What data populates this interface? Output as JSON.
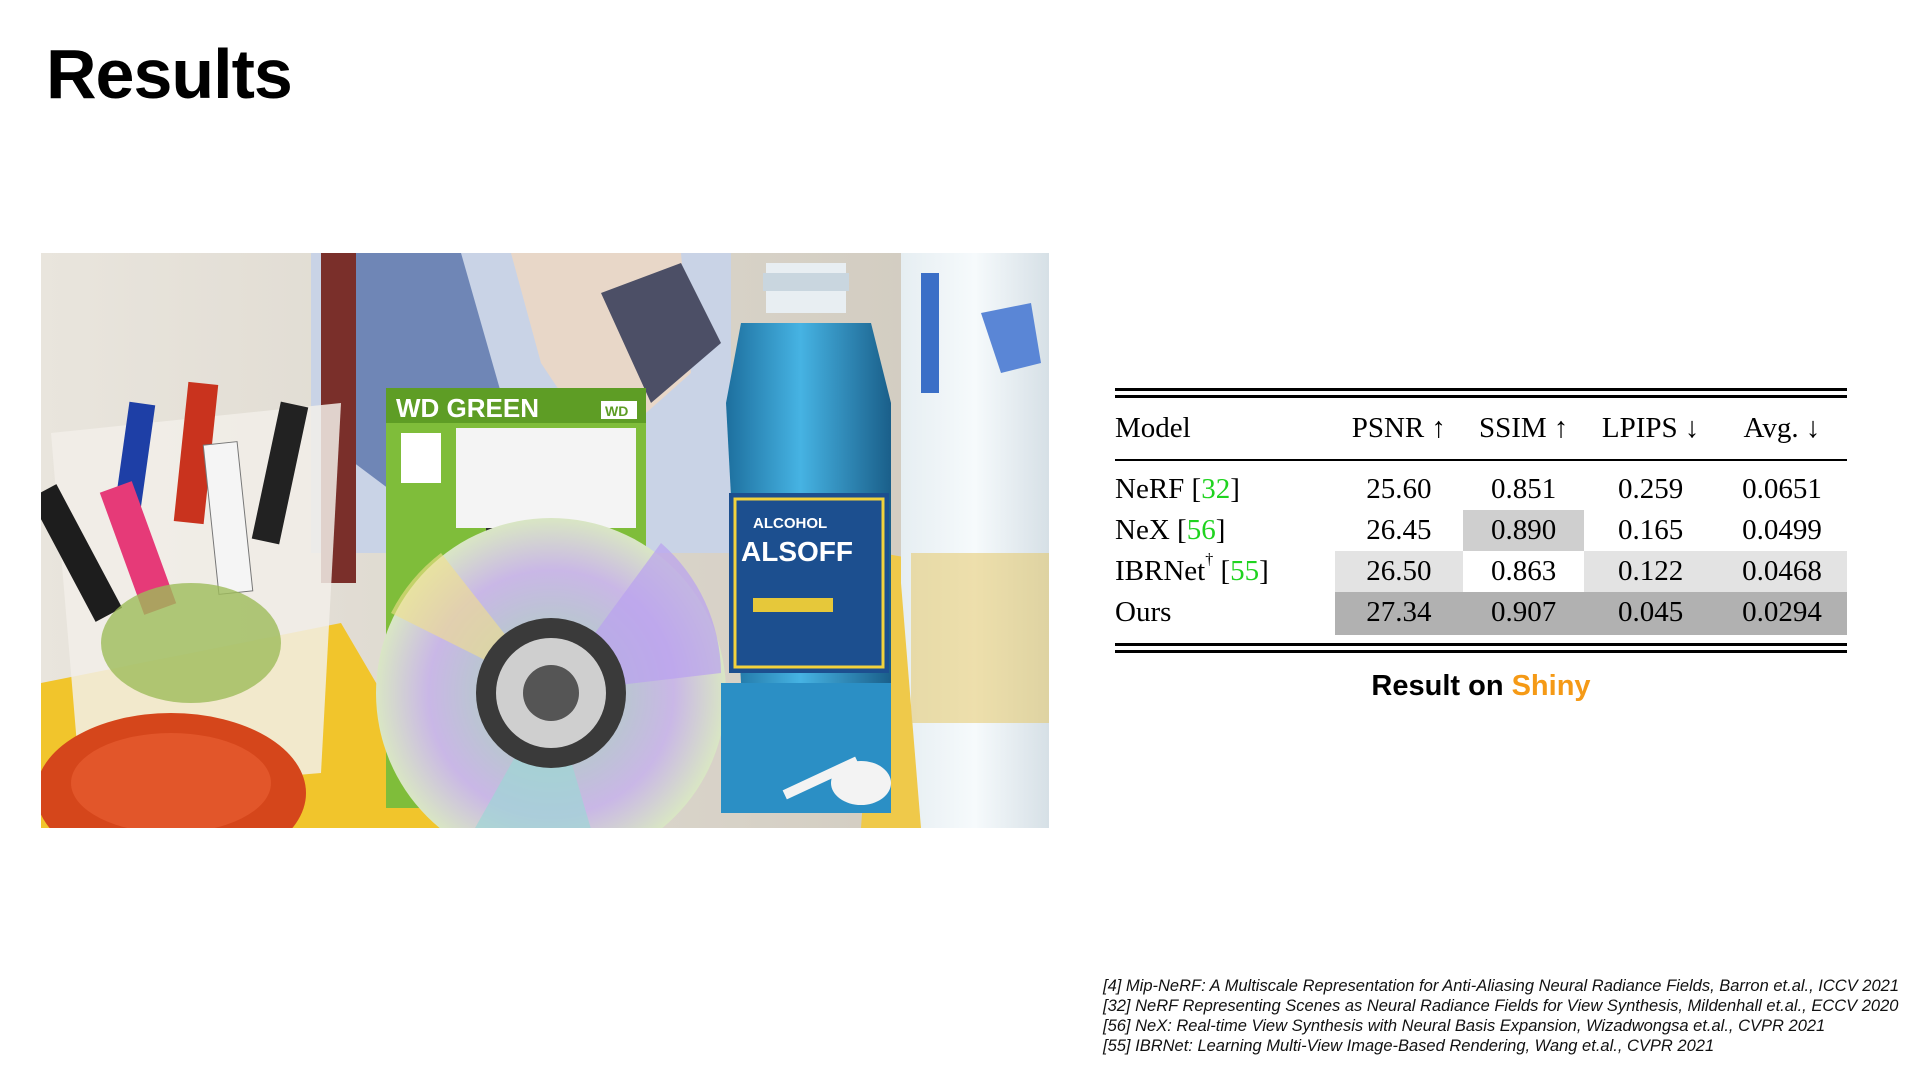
{
  "title": "Results",
  "table": {
    "headers": [
      "Model",
      "PSNR ↑",
      "SSIM ↑",
      "LPIPS ↓",
      "Avg. ↓"
    ],
    "rows": [
      {
        "model": "NeRF",
        "dagger": "",
        "cite": "32",
        "psnr": "25.60",
        "ssim": "0.851",
        "lpips": "0.259",
        "avg": "0.0651"
      },
      {
        "model": "NeX",
        "dagger": "",
        "cite": "56",
        "psnr": "26.45",
        "ssim": "0.890",
        "lpips": "0.165",
        "avg": "0.0499"
      },
      {
        "model": "IBRNet",
        "dagger": "†",
        "cite": "55",
        "psnr": "26.50",
        "ssim": "0.863",
        "lpips": "0.122",
        "avg": "0.0468"
      },
      {
        "model": "Ours",
        "dagger": "",
        "cite": "",
        "psnr": "27.34",
        "ssim": "0.907",
        "lpips": "0.045",
        "avg": "0.0294"
      }
    ]
  },
  "caption": {
    "prefix": "Result on ",
    "highlight": "Shiny"
  },
  "photo": {
    "labels": {
      "wd": "WD GREEN",
      "wd_logo": "WD",
      "alcohol": "ALCOHOL",
      "brand": "ALSOFF"
    }
  },
  "references": [
    "[4] Mip-NeRF: A Multiscale Representation for Anti-Aliasing Neural Radiance Fields, Barron et.al., ICCV 2021",
    "[32] NeRF Representing Scenes as Neural Radiance Fields for View Synthesis, Mildenhall et.al., ECCV 2020",
    "[56] NeX: Real-time View Synthesis with Neural Basis Expansion, Wizadwongsa et.al., CVPR 2021",
    "[55] IBRNet: Learning Multi-View Image-Based Rendering, Wang et.al., CVPR 2021"
  ],
  "colors": {
    "citation": "#1fd31f",
    "highlight": "#f59a16"
  }
}
